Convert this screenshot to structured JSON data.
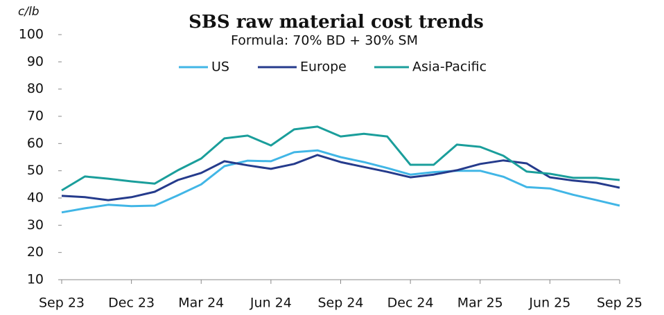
{
  "chart_data": {
    "type": "line",
    "title": "SBS raw material cost trends",
    "subtitle": "Formula: 70% BD + 30% SM",
    "y_label": "c/lb",
    "categories": [
      "Sep 23",
      null,
      null,
      "Dec 23",
      null,
      null,
      "Mar 24",
      null,
      null,
      "Jun 24",
      null,
      null,
      "Sep 24",
      null,
      null,
      "Dec 24",
      null,
      null,
      "Mar 25",
      null,
      null,
      "Jun 25",
      null,
      null,
      "Sep 25"
    ],
    "series": [
      {
        "name": "US",
        "color": "#41b6e6",
        "values": [
          34.7,
          36.2,
          37.5,
          37,
          37.2,
          41,
          45,
          51.7,
          53.7,
          53.5,
          56.8,
          57.5,
          55,
          53.2,
          51,
          48.6,
          49.5,
          50,
          50,
          47.8,
          44,
          43.5,
          41.2,
          39.2,
          37.2
        ]
      },
      {
        "name": "Europe",
        "color": "#253b8c",
        "values": [
          40.8,
          40.3,
          39.2,
          40.3,
          42.3,
          46.6,
          49.2,
          53.5,
          52,
          50.7,
          52.5,
          55.8,
          53.2,
          51.4,
          49.6,
          47.6,
          48.6,
          50.2,
          52.5,
          53.8,
          52.7,
          47.6,
          46.4,
          45.6,
          43.8
        ]
      },
      {
        "name": "Asia-Pacific",
        "color": "#1a9e9b",
        "values": [
          42.8,
          47.9,
          47.1,
          46.1,
          45.3,
          50.2,
          54.5,
          61.9,
          62.9,
          59.3,
          65.2,
          66.2,
          62.6,
          63.6,
          62.6,
          52.2,
          52.2,
          59.6,
          58.8,
          55.5,
          49.7,
          48.9,
          47.4,
          47.4,
          46.6
        ]
      }
    ],
    "ylim": [
      10,
      100
    ],
    "yticks": [
      10,
      20,
      30,
      40,
      50,
      60,
      70,
      80,
      90,
      100
    ],
    "legend": "top",
    "grid": false
  }
}
